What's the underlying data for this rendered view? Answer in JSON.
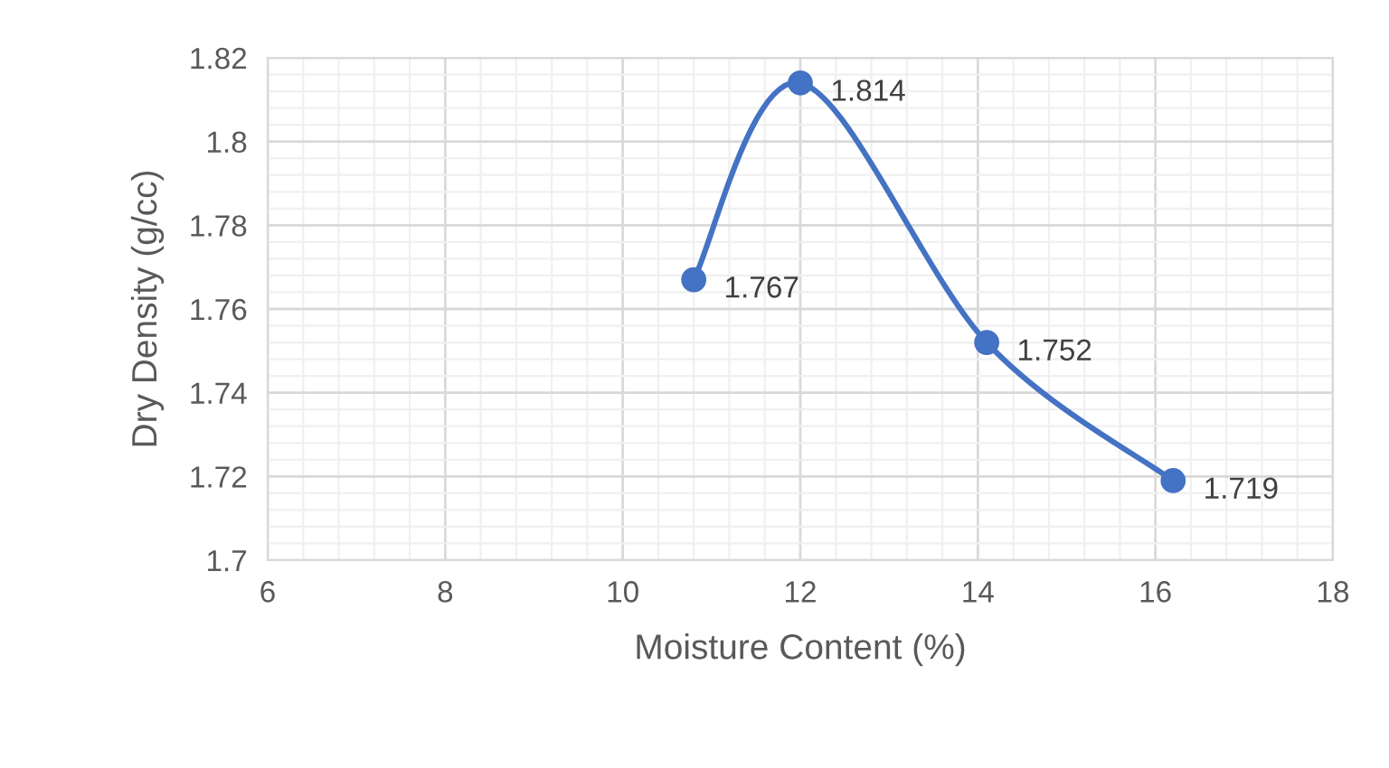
{
  "chart_data": {
    "type": "line",
    "xlabel": "Moisture Content (%)",
    "ylabel": "Dry Density (g/cc)",
    "x": [
      10.8,
      12.0,
      14.1,
      16.2
    ],
    "series": [
      {
        "color": "#4472c4",
        "values": [
          1.767,
          1.814,
          1.752,
          1.719
        ]
      }
    ],
    "xlim": [
      6,
      18
    ],
    "xticks": [
      6,
      8,
      10,
      12,
      14,
      16,
      18
    ],
    "ylim": [
      1.7,
      1.82
    ],
    "yticks": [
      {
        "value": 1.7,
        "label": "1.7"
      },
      {
        "value": 1.72,
        "label": "1.72"
      },
      {
        "value": 1.74,
        "label": "1.74"
      },
      {
        "value": 1.76,
        "label": "1.76"
      },
      {
        "value": 1.78,
        "label": "1.78"
      },
      {
        "value": 1.8,
        "label": "1.8"
      },
      {
        "value": 1.82,
        "label": "1.82"
      }
    ],
    "grid": true,
    "marker": "circle",
    "line_style": "solid",
    "data_labels": true
  }
}
